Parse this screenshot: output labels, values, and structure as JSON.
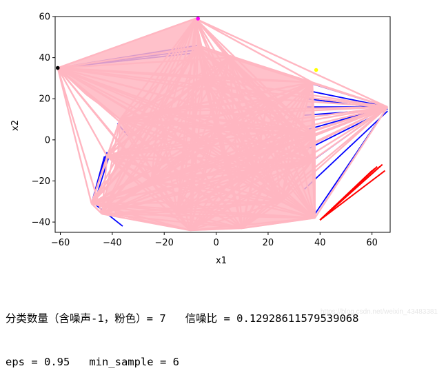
{
  "chart_data": {
    "type": "line",
    "title": "",
    "xlabel": "x1",
    "ylabel": "x2",
    "xlim": [
      -62,
      67
    ],
    "ylim": [
      -45,
      60
    ],
    "xticks": [
      -60,
      -40,
      -20,
      0,
      20,
      40,
      60
    ],
    "yticks": [
      -40,
      -20,
      0,
      20,
      40,
      60
    ],
    "grid": false,
    "hub_points": [
      [
        -61,
        35
      ],
      [
        -8,
        59
      ],
      [
        -7,
        45
      ],
      [
        37,
        28
      ],
      [
        66,
        16
      ],
      [
        38,
        2
      ],
      [
        37,
        -10
      ],
      [
        38,
        -38
      ],
      [
        10,
        -43
      ],
      [
        -10,
        -44
      ],
      [
        -44,
        -36
      ],
      [
        -42,
        -8
      ],
      [
        -48,
        -31
      ],
      [
        -37,
        10
      ],
      [
        -22,
        14
      ],
      [
        0,
        5
      ],
      [
        15,
        -15
      ],
      [
        -25,
        -20
      ],
      [
        20,
        20
      ],
      [
        -5,
        30
      ],
      [
        25,
        -30
      ],
      [
        -15,
        -35
      ],
      [
        5,
        40
      ],
      [
        30,
        5
      ]
    ],
    "series": [
      {
        "color": "#0000ff",
        "segments": [
          [
            [
              -61,
              35
            ],
            [
              -7,
              46
            ]
          ],
          [
            [
              -61,
              35
            ],
            [
              -6,
              44
            ]
          ],
          [
            [
              -61,
              35
            ],
            [
              -10,
              42
            ]
          ],
          [
            [
              35,
              28
            ],
            [
              66,
              16
            ]
          ],
          [
            [
              35,
              24
            ],
            [
              66,
              16
            ]
          ],
          [
            [
              35,
              20
            ],
            [
              66,
              15
            ]
          ],
          [
            [
              35,
              16
            ],
            [
              66,
              16
            ]
          ],
          [
            [
              34,
              12
            ],
            [
              66,
              15
            ]
          ],
          [
            [
              35,
              5
            ],
            [
              66,
              16
            ]
          ],
          [
            [
              36,
              -4
            ],
            [
              66,
              15
            ]
          ],
          [
            [
              35,
              -12
            ],
            [
              66,
              16
            ]
          ],
          [
            [
              34,
              -24
            ],
            [
              66,
              14
            ]
          ],
          [
            [
              37,
              -38
            ],
            [
              66,
              16
            ]
          ],
          [
            [
              -48,
              -31
            ],
            [
              -42,
              -6
            ]
          ],
          [
            [
              -48,
              -31
            ],
            [
              -43,
              -8
            ]
          ],
          [
            [
              -47,
              -31
            ],
            [
              -41,
              -7
            ]
          ],
          [
            [
              -48,
              -30
            ],
            [
              -36,
              -42
            ]
          ],
          [
            [
              -38,
              8
            ],
            [
              -34,
              2
            ]
          ]
        ]
      },
      {
        "color": "#ff0000",
        "segments": [
          [
            [
              40,
              -39
            ],
            [
              65,
              -15
            ]
          ],
          [
            [
              40,
              -39
            ],
            [
              64,
              -12
            ]
          ],
          [
            [
              40,
              -39
            ],
            [
              62,
              -13
            ]
          ],
          [
            [
              40,
              -39
            ],
            [
              61,
              -14
            ]
          ],
          [
            [
              40,
              -39
            ],
            [
              63,
              -13
            ]
          ],
          [
            [
              40,
              -39
            ],
            [
              60,
              -15
            ]
          ]
        ]
      },
      {
        "color": "#ffb6c1",
        "segments_from": "hub_points"
      }
    ],
    "markers": [
      {
        "x": -61,
        "y": 35,
        "color": "#000000"
      },
      {
        "x": -7,
        "y": 59,
        "color": "#ff00ff"
      },
      {
        "x": 38.5,
        "y": 34,
        "color": "#ffff00"
      }
    ]
  },
  "output": {
    "line1": "分类数量（含噪声-1，粉色）= 7   信噪比 = 0.12928611579539068",
    "line2": "eps = 0.95   min_sample = 6",
    "watermark": "https://blog.csdn.net/weixin_43483381"
  }
}
